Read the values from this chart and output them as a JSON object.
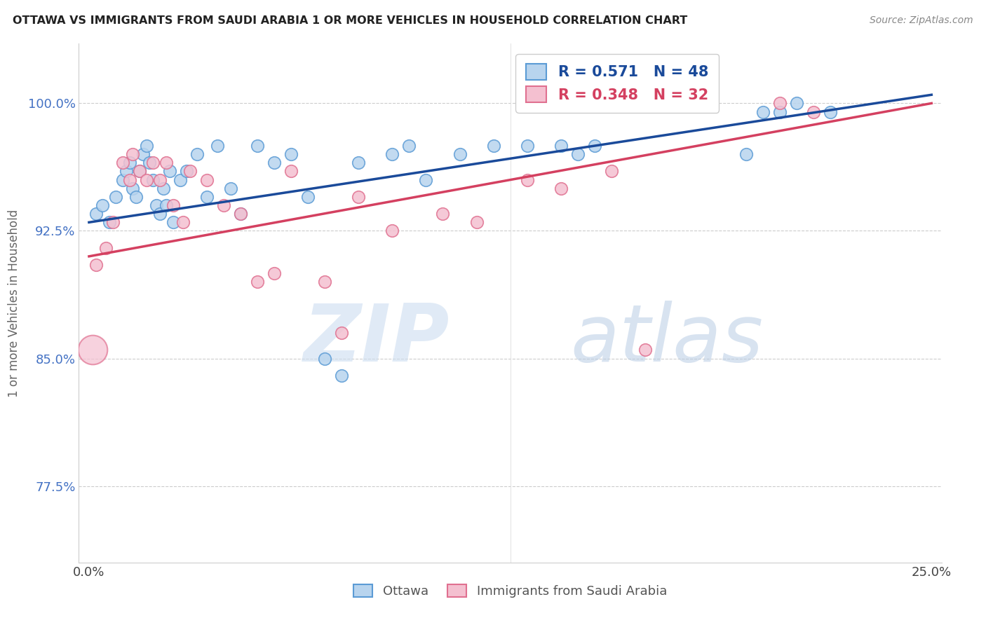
{
  "title": "OTTAWA VS IMMIGRANTS FROM SAUDI ARABIA 1 OR MORE VEHICLES IN HOUSEHOLD CORRELATION CHART",
  "source": "Source: ZipAtlas.com",
  "ylabel": "1 or more Vehicles in Household",
  "xlim": [
    -0.3,
    25.3
  ],
  "ylim": [
    73.0,
    103.5
  ],
  "yticks": [
    77.5,
    85.0,
    92.5,
    100.0
  ],
  "xticks": [
    0.0,
    6.25,
    12.5,
    18.75,
    25.0
  ],
  "xtick_labels": [
    "0.0%",
    "",
    "",
    "",
    "25.0%"
  ],
  "ytick_labels": [
    "77.5%",
    "85.0%",
    "92.5%",
    "100.0%"
  ],
  "ottawa_color": "#b8d4ee",
  "ottawa_edge": "#5b9bd5",
  "saudi_color": "#f4c0d0",
  "saudi_edge": "#e07090",
  "blue_line_color": "#1a4a9a",
  "pink_line_color": "#d44060",
  "R_ottawa": 0.571,
  "N_ottawa": 48,
  "R_saudi": 0.348,
  "N_saudi": 32,
  "watermark_zip": "ZIP",
  "watermark_atlas": "atlas",
  "legend_ottawa": "Ottawa",
  "legend_saudi": "Immigrants from Saudi Arabia",
  "ottawa_x": [
    0.2,
    0.4,
    0.6,
    0.8,
    1.0,
    1.1,
    1.2,
    1.3,
    1.4,
    1.5,
    1.6,
    1.7,
    1.8,
    1.9,
    2.0,
    2.1,
    2.2,
    2.3,
    2.4,
    2.5,
    2.7,
    2.9,
    3.2,
    3.5,
    3.8,
    4.2,
    4.5,
    5.0,
    5.5,
    6.0,
    6.5,
    7.0,
    7.5,
    8.0,
    9.0,
    9.5,
    10.0,
    11.0,
    12.0,
    13.0,
    14.0,
    14.5,
    15.0,
    19.5,
    20.0,
    20.5,
    21.0,
    22.0
  ],
  "ottawa_y": [
    93.5,
    94.0,
    93.0,
    94.5,
    95.5,
    96.0,
    96.5,
    95.0,
    94.5,
    96.0,
    97.0,
    97.5,
    96.5,
    95.5,
    94.0,
    93.5,
    95.0,
    94.0,
    96.0,
    93.0,
    95.5,
    96.0,
    97.0,
    94.5,
    97.5,
    95.0,
    93.5,
    97.5,
    96.5,
    97.0,
    94.5,
    85.0,
    84.0,
    96.5,
    97.0,
    97.5,
    95.5,
    97.0,
    97.5,
    97.5,
    97.5,
    97.0,
    97.5,
    97.0,
    99.5,
    99.5,
    100.0,
    99.5
  ],
  "saudi_x": [
    0.2,
    0.5,
    0.7,
    1.0,
    1.2,
    1.3,
    1.5,
    1.7,
    1.9,
    2.1,
    2.3,
    2.5,
    2.8,
    3.0,
    3.5,
    4.0,
    4.5,
    5.0,
    5.5,
    6.0,
    7.0,
    7.5,
    8.0,
    9.0,
    10.5,
    11.5,
    13.0,
    14.0,
    15.5,
    16.5,
    20.5,
    21.5
  ],
  "saudi_y": [
    90.5,
    91.5,
    93.0,
    96.5,
    95.5,
    97.0,
    96.0,
    95.5,
    96.5,
    95.5,
    96.5,
    94.0,
    93.0,
    96.0,
    95.5,
    94.0,
    93.5,
    89.5,
    90.0,
    96.0,
    89.5,
    86.5,
    94.5,
    92.5,
    93.5,
    93.0,
    95.5,
    95.0,
    96.0,
    85.5,
    100.0,
    99.5
  ],
  "saudi_large_x": 0.1,
  "saudi_large_y": 85.5,
  "saudi_large_size": 900
}
